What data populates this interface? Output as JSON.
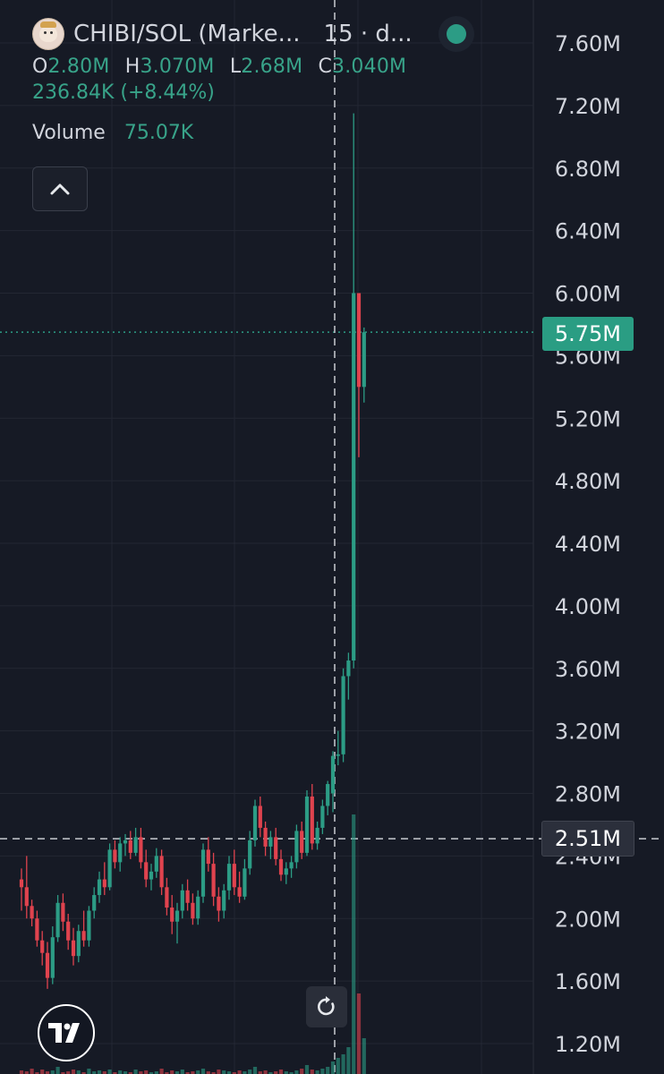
{
  "header": {
    "pair": "CHIBI/SOL (Marke...",
    "interval": "15 · d...",
    "ohlc": {
      "o_label": "O",
      "o": "2.80M",
      "h_label": "H",
      "h": "3.070M",
      "l_label": "L",
      "l": "2.68M",
      "c_label": "C",
      "c": "3.040M"
    },
    "change": "236.84K (+8.44%)",
    "volume_label": "Volume",
    "volume_value": "75.07K"
  },
  "tags": {
    "last_price": "5.75M",
    "crosshair_price": "2.51M"
  },
  "icons": {
    "logo": "chibi-token-icon",
    "status": "status-dot-icon",
    "collapse": "chevron-up-icon",
    "reset": "reset-arrow-icon",
    "brand": "tradingview-logo-icon"
  },
  "colors": {
    "background": "#161a25",
    "up": "#2c9c85",
    "down": "#e0434e",
    "grid": "#232733",
    "axis_text": "#d1d4dc"
  },
  "chart_data": {
    "type": "candlestick",
    "y_axis_ticks": [
      "7.60M",
      "7.20M",
      "6.80M",
      "6.40M",
      "6.00M",
      "5.60M",
      "5.20M",
      "4.80M",
      "4.40M",
      "4.00M",
      "3.60M",
      "3.20M",
      "2.80M",
      "2.40M",
      "2.00M",
      "1.60M",
      "1.20M"
    ],
    "ylim": [
      1.1,
      7.8
    ],
    "unit": "M",
    "last_price": 5.75,
    "crosshair_price": 2.51,
    "candles": [
      [
        2.25,
        2.32,
        2.05,
        2.2
      ],
      [
        2.2,
        2.4,
        2.0,
        2.08
      ],
      [
        2.08,
        2.12,
        1.95,
        2.0
      ],
      [
        2.0,
        2.05,
        1.82,
        1.86
      ],
      [
        1.86,
        1.92,
        1.7,
        1.78
      ],
      [
        1.78,
        1.85,
        1.55,
        1.62
      ],
      [
        1.62,
        1.95,
        1.58,
        1.88
      ],
      [
        1.88,
        2.15,
        1.85,
        2.1
      ],
      [
        2.1,
        2.16,
        1.92,
        1.98
      ],
      [
        1.98,
        2.03,
        1.8,
        1.86
      ],
      [
        1.86,
        1.94,
        1.7,
        1.76
      ],
      [
        1.76,
        1.96,
        1.72,
        1.92
      ],
      [
        1.92,
        2.05,
        1.82,
        1.86
      ],
      [
        1.86,
        2.08,
        1.82,
        2.05
      ],
      [
        2.05,
        2.2,
        2.0,
        2.15
      ],
      [
        2.15,
        2.3,
        2.1,
        2.25
      ],
      [
        2.25,
        2.36,
        2.15,
        2.2
      ],
      [
        2.2,
        2.48,
        2.18,
        2.44
      ],
      [
        2.44,
        2.5,
        2.32,
        2.36
      ],
      [
        2.36,
        2.52,
        2.3,
        2.48
      ],
      [
        2.48,
        2.54,
        2.4,
        2.5
      ],
      [
        2.5,
        2.56,
        2.38,
        2.42
      ],
      [
        2.42,
        2.58,
        2.4,
        2.52
      ],
      [
        2.52,
        2.58,
        2.32,
        2.36
      ],
      [
        2.36,
        2.44,
        2.2,
        2.25
      ],
      [
        2.25,
        2.35,
        2.18,
        2.3
      ],
      [
        2.3,
        2.45,
        2.26,
        2.4
      ],
      [
        2.4,
        2.44,
        2.15,
        2.2
      ],
      [
        2.2,
        2.26,
        2.02,
        2.07
      ],
      [
        2.07,
        2.15,
        1.9,
        1.98
      ],
      [
        1.98,
        2.1,
        1.84,
        2.05
      ],
      [
        2.05,
        2.22,
        2.0,
        2.18
      ],
      [
        2.18,
        2.25,
        2.05,
        2.1
      ],
      [
        2.1,
        2.16,
        1.96,
        2.0
      ],
      [
        2.0,
        2.18,
        1.96,
        2.14
      ],
      [
        2.14,
        2.48,
        2.1,
        2.44
      ],
      [
        2.44,
        2.52,
        2.3,
        2.35
      ],
      [
        2.35,
        2.42,
        2.08,
        2.14
      ],
      [
        2.14,
        2.2,
        1.98,
        2.05
      ],
      [
        2.05,
        2.22,
        2.0,
        2.18
      ],
      [
        2.18,
        2.4,
        2.12,
        2.35
      ],
      [
        2.35,
        2.44,
        2.15,
        2.2
      ],
      [
        2.2,
        2.3,
        2.1,
        2.14
      ],
      [
        2.14,
        2.38,
        2.12,
        2.32
      ],
      [
        2.32,
        2.56,
        2.28,
        2.5
      ],
      [
        2.5,
        2.76,
        2.46,
        2.72
      ],
      [
        2.72,
        2.78,
        2.52,
        2.58
      ],
      [
        2.58,
        2.62,
        2.4,
        2.46
      ],
      [
        2.46,
        2.56,
        2.38,
        2.52
      ],
      [
        2.52,
        2.58,
        2.34,
        2.38
      ],
      [
        2.38,
        2.44,
        2.24,
        2.28
      ],
      [
        2.28,
        2.36,
        2.22,
        2.32
      ],
      [
        2.32,
        2.4,
        2.26,
        2.36
      ],
      [
        2.36,
        2.6,
        2.32,
        2.56
      ],
      [
        2.56,
        2.62,
        2.38,
        2.42
      ],
      [
        2.42,
        2.82,
        2.4,
        2.78
      ],
      [
        2.78,
        2.86,
        2.44,
        2.48
      ],
      [
        2.48,
        2.62,
        2.44,
        2.58
      ],
      [
        2.58,
        2.76,
        2.54,
        2.72
      ],
      [
        2.72,
        2.88,
        2.66,
        2.86
      ],
      [
        2.8,
        3.07,
        2.68,
        3.04
      ],
      [
        3.04,
        3.2,
        2.98,
        3.05
      ],
      [
        3.05,
        3.6,
        3.0,
        3.55
      ],
      [
        3.55,
        3.7,
        3.4,
        3.65
      ],
      [
        3.65,
        7.15,
        3.6,
        6.0
      ],
      [
        6.0,
        6.0,
        4.95,
        5.4
      ],
      [
        5.4,
        5.78,
        5.3,
        5.75
      ]
    ],
    "volume_note": "volume bars at bottom edge (clipped)"
  }
}
